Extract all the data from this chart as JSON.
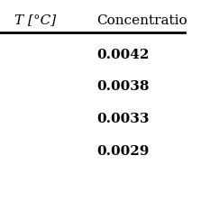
{
  "col1_header": "T [°C]",
  "col2_header": "Concentratio",
  "rows": [
    [
      "",
      "0.0042"
    ],
    [
      "",
      "0.0038"
    ],
    [
      "",
      "0.0033"
    ],
    [
      "",
      "0.0029"
    ]
  ],
  "bg_color": "#ffffff",
  "header_line_color": "#000000",
  "text_color": "#000000",
  "font_size": 11,
  "header_font_size": 11
}
